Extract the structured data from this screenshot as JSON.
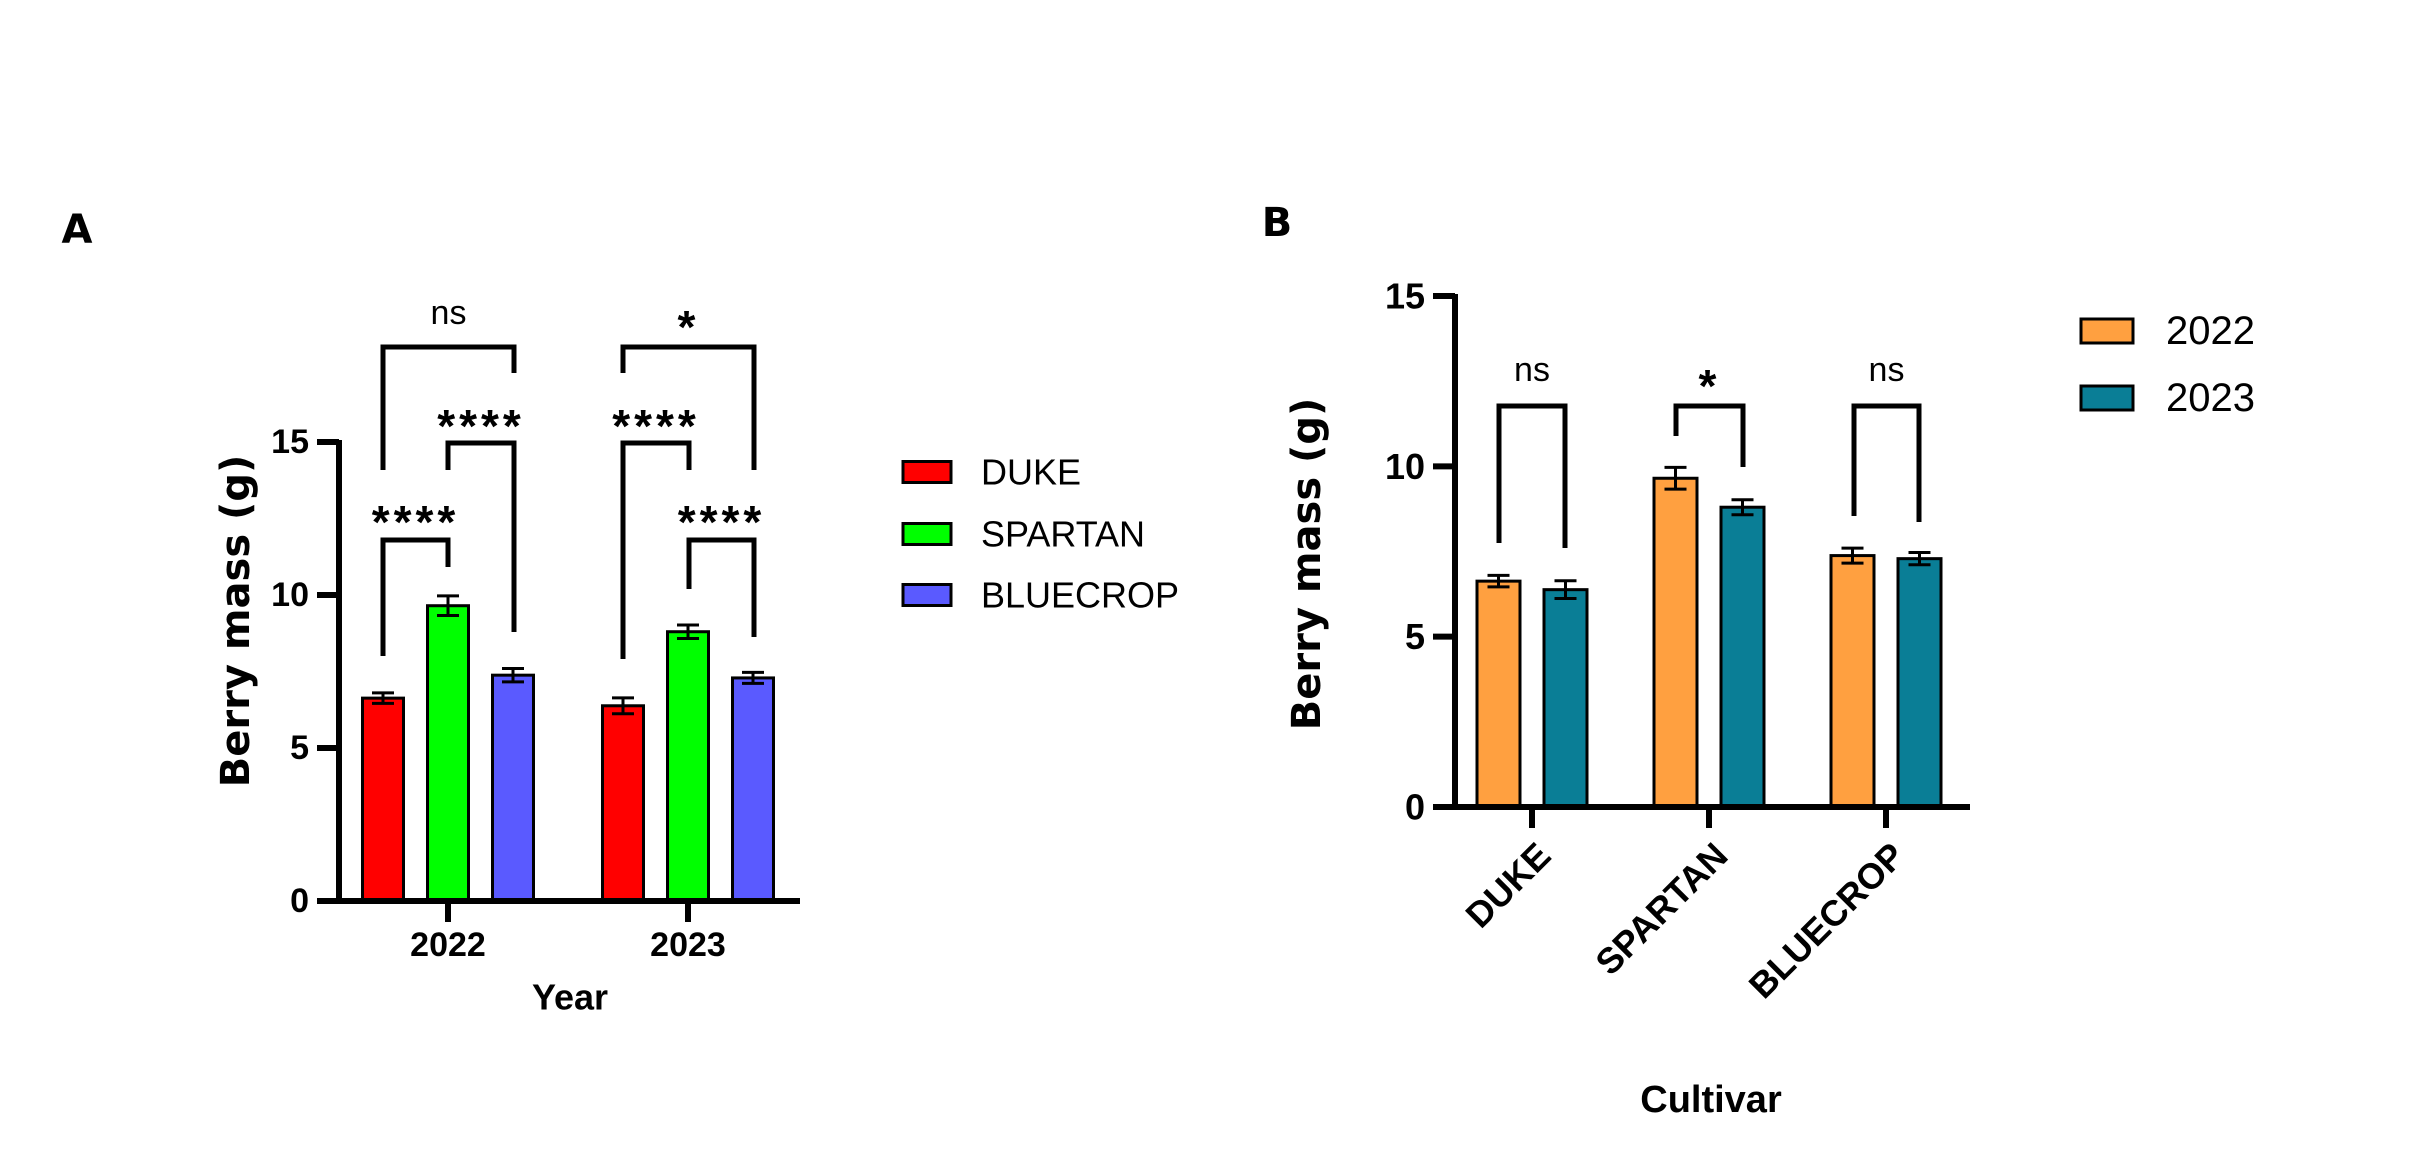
{
  "chart_data": [
    {
      "panel_label": "A",
      "type": "bar",
      "subtype": "grouped",
      "title": "",
      "xlabel": "Year",
      "ylabel": "Berry mass (g)",
      "ylim": [
        0,
        15
      ],
      "yticks": [
        0,
        5,
        10,
        15
      ],
      "categories": [
        "2022",
        "2023"
      ],
      "series": [
        {
          "name": "DUKE",
          "color": "#FF0000",
          "values": [
            6.63,
            6.38
          ],
          "error": [
            0.17,
            0.26
          ]
        },
        {
          "name": "SPARTAN",
          "color": "#00FF00",
          "values": [
            9.65,
            8.8
          ],
          "error": [
            0.32,
            0.22
          ]
        },
        {
          "name": "BLUECROP",
          "color": "#5A5AFF",
          "values": [
            7.38,
            7.29
          ],
          "error": [
            0.22,
            0.18
          ]
        }
      ],
      "legend": {
        "position": "right",
        "entries": [
          "DUKE",
          "SPARTAN",
          "BLUECROP"
        ]
      },
      "grid": false,
      "annotations": [
        {
          "category": "2022",
          "between": [
            "DUKE",
            "SPARTAN"
          ],
          "label": "****"
        },
        {
          "category": "2022",
          "between": [
            "SPARTAN",
            "BLUECROP"
          ],
          "label": "****"
        },
        {
          "category": "2022",
          "between": [
            "DUKE",
            "BLUECROP"
          ],
          "label": "ns"
        },
        {
          "category": "2023",
          "between": [
            "DUKE",
            "SPARTAN"
          ],
          "label": "****"
        },
        {
          "category": "2023",
          "between": [
            "SPARTAN",
            "BLUECROP"
          ],
          "label": "****"
        },
        {
          "category": "2023",
          "between": [
            "DUKE",
            "BLUECROP"
          ],
          "label": "*"
        }
      ]
    },
    {
      "panel_label": "B",
      "type": "bar",
      "subtype": "grouped",
      "title": "",
      "xlabel": "Cultivar",
      "ylabel": "Berry mass (g)",
      "ylim": [
        0,
        15
      ],
      "yticks": [
        0,
        5,
        10,
        15
      ],
      "categories": [
        "DUKE",
        "SPARTAN",
        "BLUECROP"
      ],
      "series": [
        {
          "name": "2022",
          "color": "#FFA040",
          "values": [
            6.63,
            9.65,
            7.38
          ],
          "error": [
            0.17,
            0.32,
            0.22
          ]
        },
        {
          "name": "2023",
          "color": "#0A7E96",
          "values": [
            6.38,
            8.8,
            7.29
          ],
          "error": [
            0.26,
            0.22,
            0.18
          ]
        }
      ],
      "legend": {
        "position": "top-right",
        "entries": [
          "2022",
          "2023"
        ]
      },
      "grid": false,
      "annotations": [
        {
          "category": "DUKE",
          "between": [
            "2022",
            "2023"
          ],
          "label": "ns"
        },
        {
          "category": "SPARTAN",
          "between": [
            "2022",
            "2023"
          ],
          "label": "*"
        },
        {
          "category": "BLUECROP",
          "between": [
            "2022",
            "2023"
          ],
          "label": "ns"
        }
      ]
    }
  ]
}
